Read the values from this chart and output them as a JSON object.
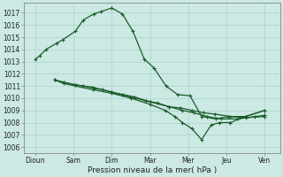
{
  "background_color": "#cce9e4",
  "grid_color": "#aad3cc",
  "line_color": "#1a5c2a",
  "xlabel": "Pression niveau de la mer( hPa )",
  "ylim": [
    1005.5,
    1017.8
  ],
  "yticks": [
    1006,
    1007,
    1008,
    1009,
    1010,
    1011,
    1012,
    1013,
    1014,
    1015,
    1016,
    1017
  ],
  "xtick_labels": [
    "Dioun",
    "Sam",
    "Dim",
    "Mar",
    "Mer",
    "Jeu",
    "Ven"
  ],
  "xtick_positions": [
    0,
    1,
    2,
    3,
    4,
    5,
    6
  ],
  "line0_x": [
    0.0,
    0.12,
    0.28,
    0.55,
    0.72,
    1.05,
    1.25,
    1.52,
    1.72,
    2.0,
    2.28,
    2.55,
    2.85,
    3.1,
    3.42,
    3.72,
    4.05,
    4.35,
    4.72,
    5.05,
    5.5,
    6.0
  ],
  "line0_y": [
    1013.2,
    1013.5,
    1014.0,
    1014.5,
    1014.8,
    1015.5,
    1016.4,
    1016.9,
    1017.1,
    1017.4,
    1016.9,
    1015.5,
    1013.2,
    1012.5,
    1011.0,
    1010.3,
    1010.2,
    1008.5,
    1008.3,
    1008.5,
    1008.5,
    1009.0
  ],
  "line1_x": [
    0.5,
    0.75,
    1.05,
    1.25,
    1.55,
    1.75,
    2.0,
    2.3,
    2.6,
    2.9,
    3.2,
    3.5,
    3.8,
    4.1,
    4.4,
    4.7,
    5.1,
    5.5,
    6.0
  ],
  "line1_y": [
    1011.5,
    1011.3,
    1011.1,
    1011.0,
    1010.8,
    1010.7,
    1010.5,
    1010.3,
    1010.1,
    1009.8,
    1009.6,
    1009.3,
    1009.2,
    1009.0,
    1008.8,
    1008.7,
    1008.5,
    1008.4,
    1008.5
  ],
  "line2_x": [
    0.5,
    0.75,
    1.05,
    1.5,
    2.0,
    2.5,
    3.0,
    3.5,
    3.85,
    4.15,
    4.5,
    4.85,
    5.3,
    5.75,
    6.0
  ],
  "line2_y": [
    1011.5,
    1011.3,
    1011.1,
    1010.9,
    1010.5,
    1010.1,
    1009.7,
    1009.3,
    1009.0,
    1008.8,
    1008.5,
    1008.3,
    1008.3,
    1008.5,
    1008.6
  ],
  "line3_x": [
    0.5,
    0.75,
    1.5,
    2.0,
    2.5,
    3.0,
    3.4,
    3.65,
    3.85,
    4.1,
    4.35,
    4.6,
    4.82,
    5.1,
    5.5,
    6.0
  ],
  "line3_y": [
    1011.5,
    1011.2,
    1010.7,
    1010.4,
    1010.0,
    1009.5,
    1009.0,
    1008.5,
    1008.0,
    1007.5,
    1006.6,
    1007.8,
    1008.0,
    1008.0,
    1008.5,
    1009.0
  ]
}
